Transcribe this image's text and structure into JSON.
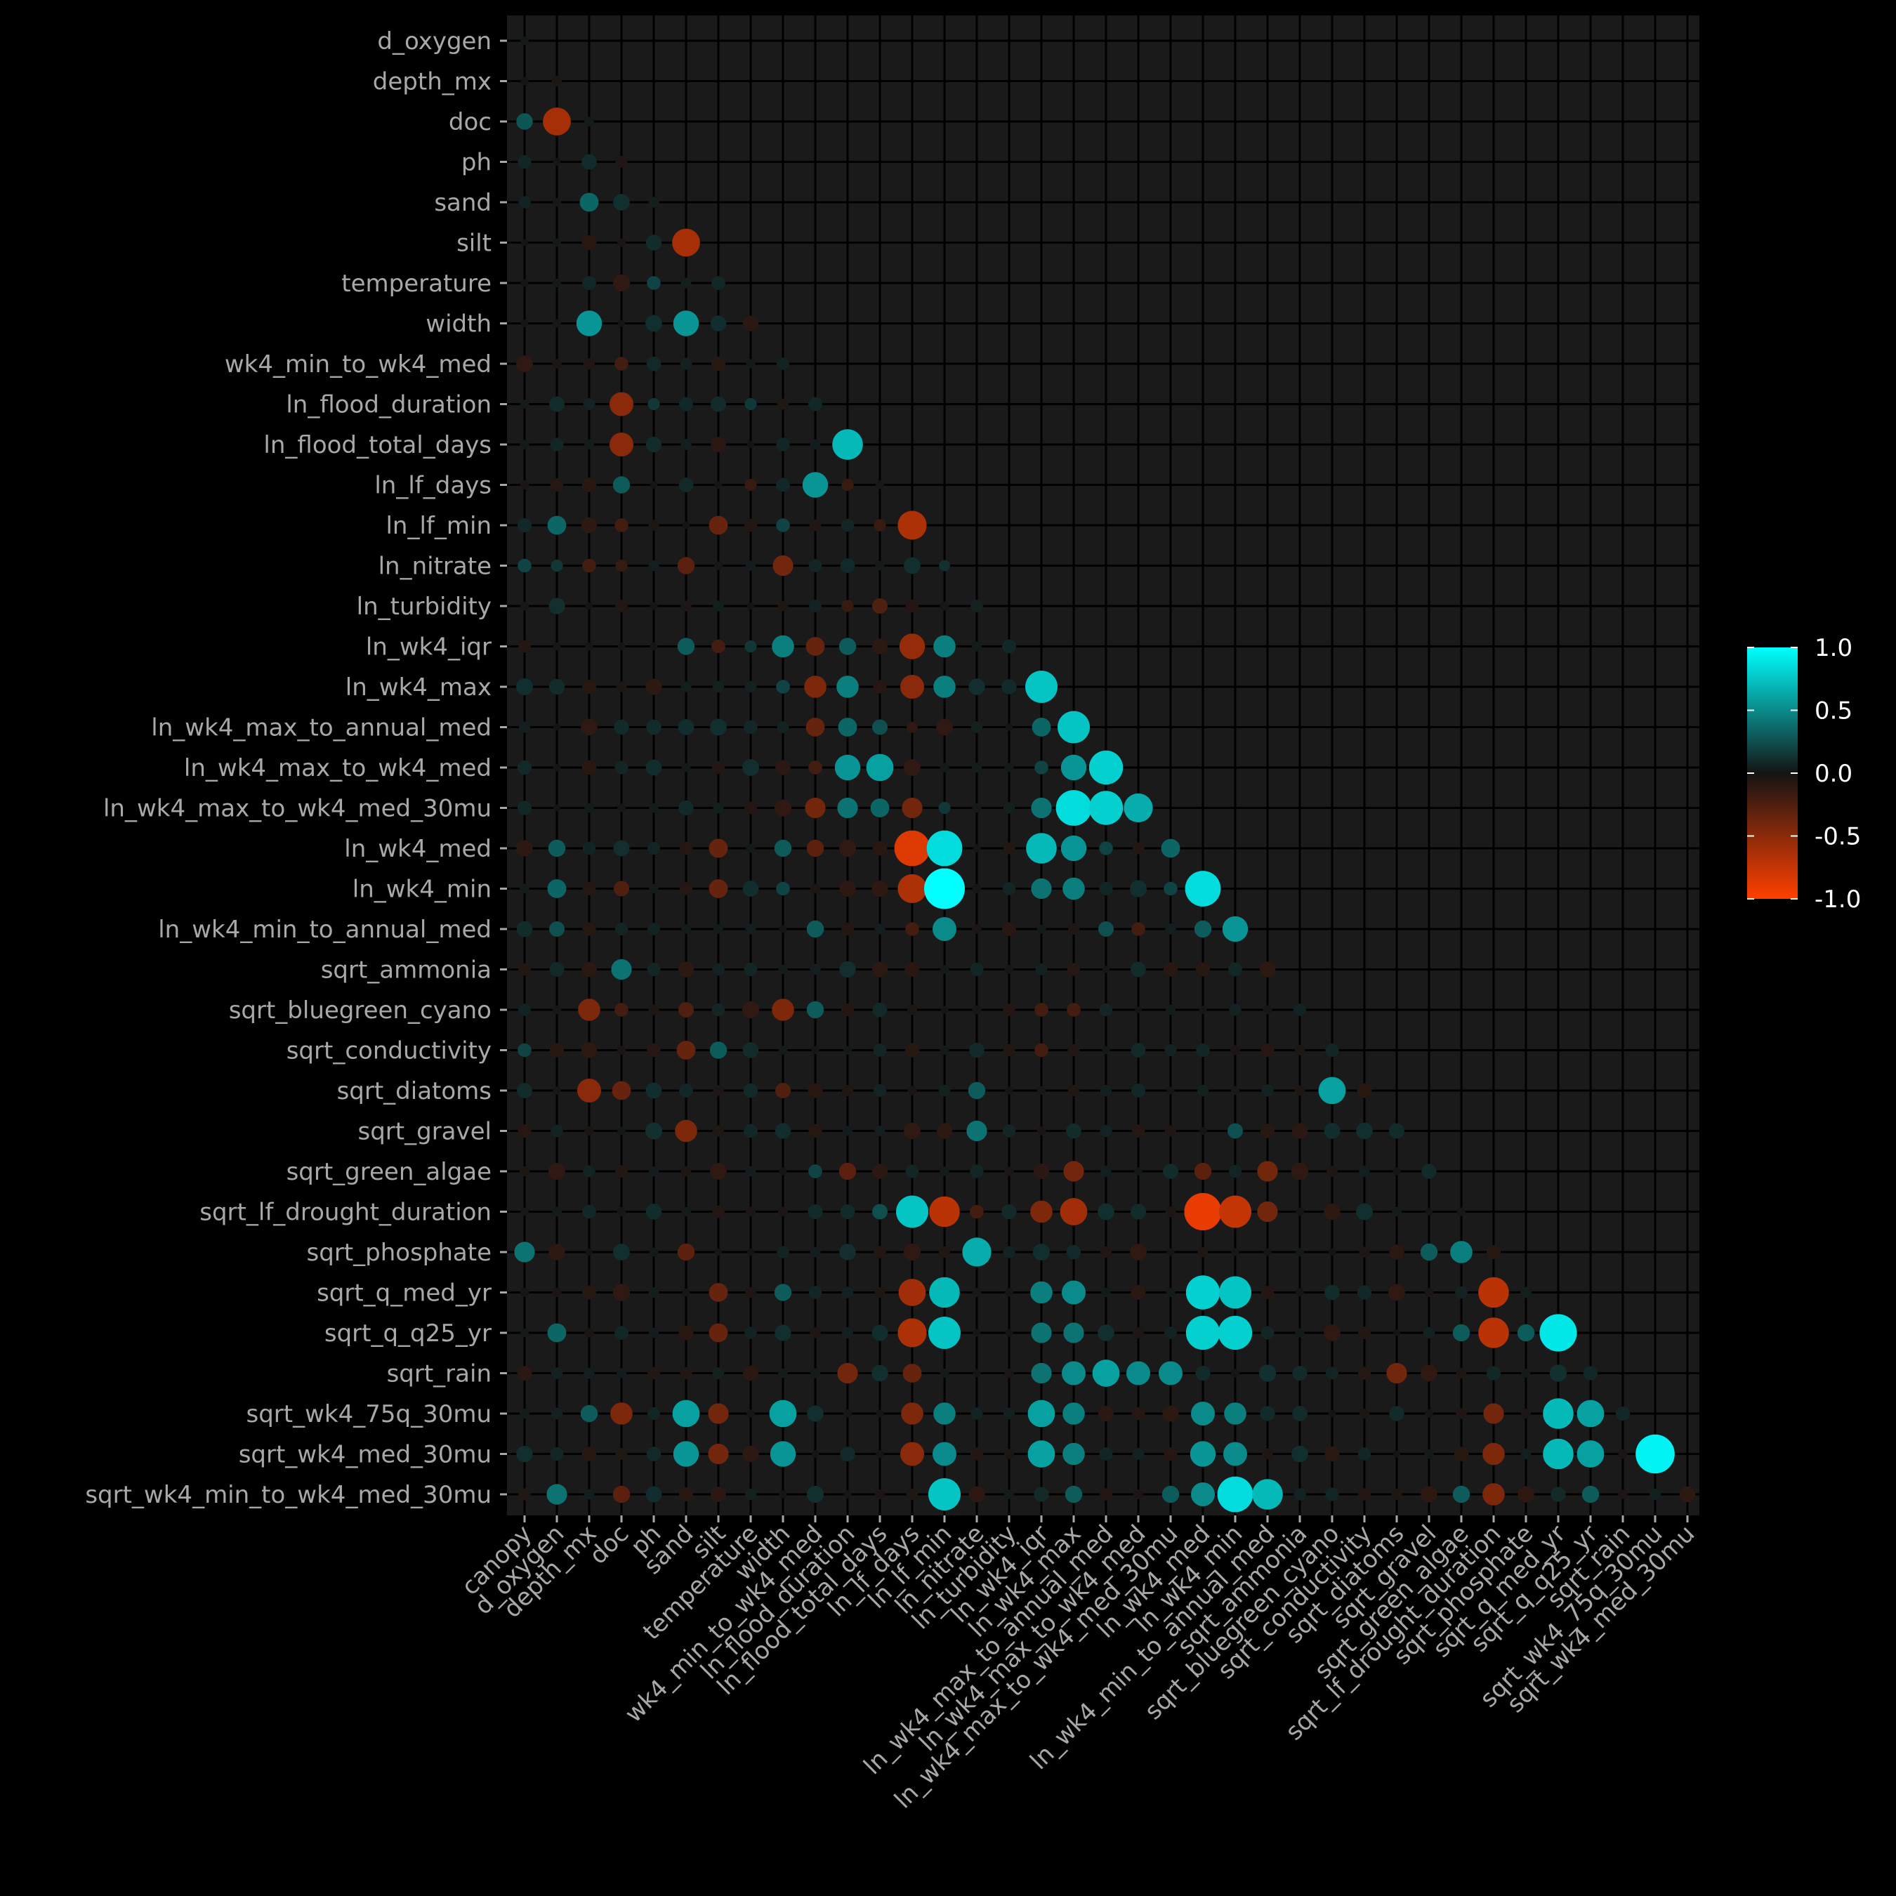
{
  "chart_data": {
    "type": "heatmap",
    "subtype": "correlation-bubble-lower-triangle",
    "title": "",
    "xlabel": "",
    "ylabel": "",
    "variables": [
      "canopy",
      "d_oxygen",
      "depth_mx",
      "doc",
      "ph",
      "sand",
      "silt",
      "temperature",
      "width",
      "wk4_min_to_wk4_med",
      "ln_flood_duration",
      "ln_flood_total_days",
      "ln_lf_days",
      "ln_lf_min",
      "ln_nitrate",
      "ln_turbidity",
      "ln_wk4_iqr",
      "ln_wk4_max",
      "ln_wk4_max_to_annual_med",
      "ln_wk4_max_to_wk4_med",
      "ln_wk4_max_to_wk4_med_30mu",
      "ln_wk4_med",
      "ln_wk4_min",
      "ln_wk4_min_to_annual_med",
      "sqrt_ammonia",
      "sqrt_bluegreen_cyano",
      "sqrt_conductivity",
      "sqrt_diatoms",
      "sqrt_gravel",
      "sqrt_green_algae",
      "sqrt_lf_drought_duration",
      "sqrt_phosphate",
      "sqrt_q_med_yr",
      "sqrt_q_q25_yr",
      "sqrt_rain",
      "sqrt_wk4_75q_30mu",
      "sqrt_wk4_med_30mu",
      "sqrt_wk4_min_to_wk4_med_30mu"
    ],
    "x_labels": [
      "canopy",
      "d_oxygen",
      "depth_mx",
      "doc",
      "ph",
      "sand",
      "silt",
      "temperature",
      "width",
      "wk4_min_to_wk4_med",
      "ln_flood_duration",
      "ln_flood_total_days",
      "ln_lf_days",
      "ln_lf_min",
      "ln_nitrate",
      "ln_turbidity",
      "ln_wk4_iqr",
      "ln_wk4_max",
      "ln_wk4_max_to_annual_med",
      "ln_wk4_max_to_wk4_med",
      "ln_wk4_max_to_wk4_med_30mu",
      "ln_wk4_med",
      "ln_wk4_min",
      "ln_wk4_min_to_annual_med",
      "sqrt_ammonia",
      "sqrt_bluegreen_cyano",
      "sqrt_conductivity",
      "sqrt_diatoms",
      "sqrt_gravel",
      "sqrt_green_algae",
      "sqrt_lf_drought_duration",
      "sqrt_phosphate",
      "sqrt_q_med_yr",
      "sqrt_q_q25_yr",
      "sqrt_rain",
      "sqrt_wk4_75q_30mu",
      "sqrt_wk4_med_30mu"
    ],
    "y_labels": [
      "d_oxygen",
      "depth_mx",
      "doc",
      "ph",
      "sand",
      "silt",
      "temperature",
      "width",
      "wk4_min_to_wk4_med",
      "ln_flood_duration",
      "ln_flood_total_days",
      "ln_lf_days",
      "ln_lf_min",
      "ln_nitrate",
      "ln_turbidity",
      "ln_wk4_iqr",
      "ln_wk4_max",
      "ln_wk4_max_to_annual_med",
      "ln_wk4_max_to_wk4_med",
      "ln_wk4_max_to_wk4_med_30mu",
      "ln_wk4_med",
      "ln_wk4_min",
      "ln_wk4_min_to_annual_med",
      "sqrt_ammonia",
      "sqrt_bluegreen_cyano",
      "sqrt_conductivity",
      "sqrt_diatoms",
      "sqrt_gravel",
      "sqrt_green_algae",
      "sqrt_lf_drought_duration",
      "sqrt_phosphate",
      "sqrt_q_med_yr",
      "sqrt_q_q25_yr",
      "sqrt_rain",
      "sqrt_wk4_75q_30mu",
      "sqrt_wk4_med_30mu",
      "sqrt_wk4_min_to_wk4_med_30mu"
    ],
    "cells": [
      [
        "doc",
        "canopy",
        0.28
      ],
      [
        "doc",
        "d_oxygen",
        -0.62
      ],
      [
        "sand",
        "depth_mx",
        0.35
      ],
      [
        "silt",
        "sand",
        -0.62
      ],
      [
        "temperature",
        "ph",
        0.2
      ],
      [
        "width",
        "depth_mx",
        0.55
      ],
      [
        "width",
        "sand",
        0.55
      ],
      [
        "wk4_min_to_wk4_med",
        "doc",
        -0.2
      ],
      [
        "ln_flood_duration",
        "doc",
        -0.5
      ],
      [
        "ln_flood_duration",
        "ph",
        0.15
      ],
      [
        "ln_flood_duration",
        "temperature",
        0.15
      ],
      [
        "ln_flood_total_days",
        "doc",
        -0.5
      ],
      [
        "ln_flood_total_days",
        "ln_flood_duration",
        0.7
      ],
      [
        "ln_lf_days",
        "doc",
        0.3
      ],
      [
        "ln_lf_days",
        "temperature",
        -0.15
      ],
      [
        "ln_lf_days",
        "wk4_min_to_wk4_med",
        0.55
      ],
      [
        "ln_lf_days",
        "ln_flood_duration",
        -0.15
      ],
      [
        "ln_lf_min",
        "d_oxygen",
        0.35
      ],
      [
        "ln_lf_min",
        "doc",
        -0.2
      ],
      [
        "ln_lf_min",
        "silt",
        -0.35
      ],
      [
        "ln_lf_min",
        "width",
        0.2
      ],
      [
        "ln_lf_min",
        "ln_flood_total_days",
        -0.15
      ],
      [
        "ln_lf_min",
        "ln_lf_days",
        -0.65
      ],
      [
        "ln_nitrate",
        "canopy",
        0.2
      ],
      [
        "ln_nitrate",
        "d_oxygen",
        0.15
      ],
      [
        "ln_nitrate",
        "depth_mx",
        -0.2
      ],
      [
        "ln_nitrate",
        "doc",
        -0.15
      ],
      [
        "ln_nitrate",
        "sand",
        -0.3
      ],
      [
        "ln_nitrate",
        "width",
        -0.4
      ],
      [
        "ln_nitrate",
        "ln_lf_min",
        0.12
      ],
      [
        "ln_turbidity",
        "ln_flood_duration",
        -0.15
      ],
      [
        "ln_turbidity",
        "ln_flood_total_days",
        -0.25
      ],
      [
        "ln_wk4_iqr",
        "sand",
        0.3
      ],
      [
        "ln_wk4_iqr",
        "silt",
        -0.2
      ],
      [
        "ln_wk4_iqr",
        "temperature",
        0.15
      ],
      [
        "ln_wk4_iqr",
        "width",
        0.45
      ],
      [
        "ln_wk4_iqr",
        "wk4_min_to_wk4_med",
        -0.35
      ],
      [
        "ln_wk4_iqr",
        "ln_flood_duration",
        0.3
      ],
      [
        "ln_wk4_iqr",
        "ln_lf_days",
        -0.55
      ],
      [
        "ln_wk4_iqr",
        "ln_lf_min",
        0.45
      ],
      [
        "ln_wk4_max",
        "width",
        0.2
      ],
      [
        "ln_wk4_max",
        "wk4_min_to_wk4_med",
        -0.45
      ],
      [
        "ln_wk4_max",
        "ln_flood_duration",
        0.45
      ],
      [
        "ln_wk4_max",
        "ln_lf_days",
        -0.5
      ],
      [
        "ln_wk4_max",
        "ln_lf_min",
        0.45
      ],
      [
        "ln_wk4_max",
        "ln_wk4_iqr",
        0.75
      ],
      [
        "ln_wk4_max_to_annual_med",
        "wk4_min_to_wk4_med",
        -0.35
      ],
      [
        "ln_wk4_max_to_annual_med",
        "ln_flood_duration",
        0.35
      ],
      [
        "ln_wk4_max_to_annual_med",
        "ln_flood_total_days",
        0.25
      ],
      [
        "ln_wk4_max_to_annual_med",
        "ln_lf_days",
        -0.12
      ],
      [
        "ln_wk4_max_to_annual_med",
        "ln_wk4_iqr",
        0.35
      ],
      [
        "ln_wk4_max_to_annual_med",
        "ln_wk4_max",
        0.75
      ],
      [
        "ln_wk4_max_to_wk4_med",
        "wk4_min_to_wk4_med",
        -0.2
      ],
      [
        "ln_wk4_max_to_wk4_med",
        "ln_flood_duration",
        0.55
      ],
      [
        "ln_wk4_max_to_wk4_med",
        "ln_flood_total_days",
        0.6
      ],
      [
        "ln_wk4_max_to_wk4_med",
        "ln_wk4_iqr",
        0.2
      ],
      [
        "ln_wk4_max_to_wk4_med",
        "ln_wk4_max",
        0.55
      ],
      [
        "ln_wk4_max_to_wk4_med",
        "ln_wk4_max_to_annual_med",
        0.8
      ],
      [
        "ln_wk4_max_to_wk4_med_30mu",
        "wk4_min_to_wk4_med",
        -0.4
      ],
      [
        "ln_wk4_max_to_wk4_med_30mu",
        "ln_flood_duration",
        0.4
      ],
      [
        "ln_wk4_max_to_wk4_med_30mu",
        "ln_flood_total_days",
        0.35
      ],
      [
        "ln_wk4_max_to_wk4_med_30mu",
        "ln_lf_days",
        -0.4
      ],
      [
        "ln_wk4_max_to_wk4_med_30mu",
        "ln_lf_min",
        0.15
      ],
      [
        "ln_wk4_max_to_wk4_med_30mu",
        "ln_wk4_iqr",
        0.4
      ],
      [
        "ln_wk4_max_to_wk4_med_30mu",
        "ln_wk4_max",
        0.85
      ],
      [
        "ln_wk4_max_to_wk4_med_30mu",
        "ln_wk4_max_to_annual_med",
        0.8
      ],
      [
        "ln_wk4_max_to_wk4_med_30mu",
        "ln_wk4_max_to_wk4_med",
        0.65
      ],
      [
        "ln_wk4_med",
        "d_oxygen",
        0.3
      ],
      [
        "ln_wk4_med",
        "silt",
        -0.35
      ],
      [
        "ln_wk4_med",
        "width",
        0.3
      ],
      [
        "ln_wk4_med",
        "wk4_min_to_wk4_med",
        -0.3
      ],
      [
        "ln_wk4_med",
        "ln_lf_days",
        -0.85
      ],
      [
        "ln_wk4_med",
        "ln_lf_min",
        0.85
      ],
      [
        "ln_wk4_med",
        "ln_wk4_iqr",
        0.7
      ],
      [
        "ln_wk4_med",
        "ln_wk4_max",
        0.55
      ],
      [
        "ln_wk4_med",
        "ln_wk4_max_to_annual_med",
        0.2
      ],
      [
        "ln_wk4_med",
        "ln_wk4_max_to_wk4_med_30mu",
        0.35
      ],
      [
        "ln_wk4_min",
        "d_oxygen",
        0.35
      ],
      [
        "ln_wk4_min",
        "doc",
        -0.25
      ],
      [
        "ln_wk4_min",
        "silt",
        -0.35
      ],
      [
        "ln_wk4_min",
        "width",
        0.2
      ],
      [
        "ln_wk4_min",
        "ln_lf_days",
        -0.65
      ],
      [
        "ln_wk4_min",
        "ln_lf_min",
        1.0
      ],
      [
        "ln_wk4_min",
        "ln_wk4_iqr",
        0.4
      ],
      [
        "ln_wk4_min",
        "ln_wk4_max",
        0.45
      ],
      [
        "ln_wk4_min",
        "ln_wk4_max_to_wk4_med_30mu",
        0.2
      ],
      [
        "ln_wk4_min",
        "ln_wk4_med",
        0.85
      ],
      [
        "ln_wk4_min_to_annual_med",
        "d_oxygen",
        0.25
      ],
      [
        "ln_wk4_min_to_annual_med",
        "wk4_min_to_wk4_med",
        0.3
      ],
      [
        "ln_wk4_min_to_annual_med",
        "ln_lf_days",
        -0.2
      ],
      [
        "ln_wk4_min_to_annual_med",
        "ln_lf_min",
        0.5
      ],
      [
        "ln_wk4_min_to_annual_med",
        "ln_wk4_max_to_annual_med",
        0.25
      ],
      [
        "ln_wk4_min_to_annual_med",
        "ln_wk4_max_to_wk4_med",
        -0.2
      ],
      [
        "ln_wk4_min_to_annual_med",
        "ln_wk4_med",
        0.3
      ],
      [
        "ln_wk4_min_to_annual_med",
        "ln_wk4_min",
        0.55
      ],
      [
        "sqrt_ammonia",
        "doc",
        0.4
      ],
      [
        "sqrt_bluegreen_cyano",
        "depth_mx",
        -0.45
      ],
      [
        "sqrt_bluegreen_cyano",
        "doc",
        -0.2
      ],
      [
        "sqrt_bluegreen_cyano",
        "sand",
        -0.25
      ],
      [
        "sqrt_bluegreen_cyano",
        "width",
        -0.45
      ],
      [
        "sqrt_bluegreen_cyano",
        "wk4_min_to_wk4_med",
        0.3
      ],
      [
        "sqrt_bluegreen_cyano",
        "ln_wk4_iqr",
        -0.2
      ],
      [
        "sqrt_bluegreen_cyano",
        "ln_wk4_max",
        -0.2
      ],
      [
        "sqrt_conductivity",
        "canopy",
        0.2
      ],
      [
        "sqrt_conductivity",
        "sand",
        -0.35
      ],
      [
        "sqrt_conductivity",
        "silt",
        0.3
      ],
      [
        "sqrt_conductivity",
        "ln_wk4_iqr",
        -0.2
      ],
      [
        "sqrt_diatoms",
        "depth_mx",
        -0.5
      ],
      [
        "sqrt_diatoms",
        "doc",
        -0.35
      ],
      [
        "sqrt_diatoms",
        "width",
        -0.25
      ],
      [
        "sqrt_diatoms",
        "ln_nitrate",
        0.3
      ],
      [
        "sqrt_diatoms",
        "sqrt_bluegreen_cyano",
        0.6
      ],
      [
        "sqrt_gravel",
        "sand",
        -0.45
      ],
      [
        "sqrt_gravel",
        "ln_nitrate",
        0.4
      ],
      [
        "sqrt_gravel",
        "ln_wk4_min",
        0.25
      ],
      [
        "sqrt_green_algae",
        "wk4_min_to_wk4_med",
        0.2
      ],
      [
        "sqrt_green_algae",
        "ln_flood_duration",
        -0.3
      ],
      [
        "sqrt_green_algae",
        "ln_wk4_max",
        -0.4
      ],
      [
        "sqrt_green_algae",
        "ln_wk4_min_to_annual_med",
        -0.4
      ],
      [
        "sqrt_green_algae",
        "ln_wk4_med",
        -0.3
      ],
      [
        "sqrt_lf_drought_duration",
        "ln_flood_total_days",
        0.25
      ],
      [
        "sqrt_lf_drought_duration",
        "ln_lf_days",
        0.75
      ],
      [
        "sqrt_lf_drought_duration",
        "ln_lf_min",
        -0.7
      ],
      [
        "sqrt_lf_drought_duration",
        "ln_nitrate",
        -0.2
      ],
      [
        "sqrt_lf_drought_duration",
        "ln_wk4_iqr",
        -0.45
      ],
      [
        "sqrt_lf_drought_duration",
        "ln_wk4_max",
        -0.6
      ],
      [
        "sqrt_lf_drought_duration",
        "ln_wk4_min_to_annual_med",
        -0.4
      ],
      [
        "sqrt_lf_drought_duration",
        "ln_wk4_med",
        -0.9
      ],
      [
        "sqrt_lf_drought_duration",
        "ln_wk4_min",
        -0.75
      ],
      [
        "sqrt_phosphate",
        "canopy",
        0.4
      ],
      [
        "sqrt_phosphate",
        "sand",
        -0.3
      ],
      [
        "sqrt_phosphate",
        "ln_nitrate",
        0.65
      ],
      [
        "sqrt_phosphate",
        "sqrt_gravel",
        0.3
      ],
      [
        "sqrt_phosphate",
        "sqrt_green_algae",
        0.45
      ],
      [
        "sqrt_q_med_yr",
        "width",
        0.3
      ],
      [
        "sqrt_q_med_yr",
        "silt",
        -0.35
      ],
      [
        "sqrt_q_med_yr",
        "ln_lf_days",
        -0.6
      ],
      [
        "sqrt_q_med_yr",
        "ln_lf_min",
        0.7
      ],
      [
        "sqrt_q_med_yr",
        "ln_wk4_iqr",
        0.45
      ],
      [
        "sqrt_q_med_yr",
        "ln_wk4_max",
        0.5
      ],
      [
        "sqrt_q_med_yr",
        "ln_wk4_med",
        0.8
      ],
      [
        "sqrt_q_med_yr",
        "ln_wk4_min",
        0.75
      ],
      [
        "sqrt_q_med_yr",
        "sqrt_lf_drought_duration",
        -0.7
      ],
      [
        "sqrt_q_q25_yr",
        "d_oxygen",
        0.35
      ],
      [
        "sqrt_q_q25_yr",
        "silt",
        -0.35
      ],
      [
        "sqrt_q_q25_yr",
        "ln_lf_days",
        -0.65
      ],
      [
        "sqrt_q_q25_yr",
        "ln_lf_min",
        0.75
      ],
      [
        "sqrt_q_q25_yr",
        "ln_wk4_iqr",
        0.4
      ],
      [
        "sqrt_q_q25_yr",
        "ln_wk4_max",
        0.4
      ],
      [
        "sqrt_q_q25_yr",
        "ln_wk4_med",
        0.8
      ],
      [
        "sqrt_q_q25_yr",
        "ln_wk4_min",
        0.8
      ],
      [
        "sqrt_q_q25_yr",
        "sqrt_green_algae",
        0.3
      ],
      [
        "sqrt_q_q25_yr",
        "sqrt_lf_drought_duration",
        -0.7
      ],
      [
        "sqrt_q_q25_yr",
        "sqrt_phosphate",
        0.3
      ],
      [
        "sqrt_q_q25_yr",
        "sqrt_q_med_yr",
        0.9
      ],
      [
        "sqrt_rain",
        "ln_flood_duration",
        -0.4
      ],
      [
        "sqrt_rain",
        "ln_lf_days",
        -0.35
      ],
      [
        "sqrt_rain",
        "ln_wk4_iqr",
        0.4
      ],
      [
        "sqrt_rain",
        "ln_wk4_max",
        0.5
      ],
      [
        "sqrt_rain",
        "ln_wk4_max_to_annual_med",
        0.6
      ],
      [
        "sqrt_rain",
        "ln_wk4_max_to_wk4_med",
        0.5
      ],
      [
        "sqrt_rain",
        "ln_wk4_max_to_wk4_med_30mu",
        0.5
      ],
      [
        "sqrt_rain",
        "sqrt_diatoms",
        -0.4
      ],
      [
        "sqrt_wk4_75q_30mu",
        "depth_mx",
        0.3
      ],
      [
        "sqrt_wk4_75q_30mu",
        "doc",
        -0.45
      ],
      [
        "sqrt_wk4_75q_30mu",
        "sand",
        0.6
      ],
      [
        "sqrt_wk4_75q_30mu",
        "silt",
        -0.4
      ],
      [
        "sqrt_wk4_75q_30mu",
        "width",
        0.6
      ],
      [
        "sqrt_wk4_75q_30mu",
        "ln_lf_days",
        -0.45
      ],
      [
        "sqrt_wk4_75q_30mu",
        "ln_lf_min",
        0.45
      ],
      [
        "sqrt_wk4_75q_30mu",
        "ln_wk4_iqr",
        0.6
      ],
      [
        "sqrt_wk4_75q_30mu",
        "ln_wk4_max",
        0.45
      ],
      [
        "sqrt_wk4_75q_30mu",
        "ln_wk4_med",
        0.5
      ],
      [
        "sqrt_wk4_75q_30mu",
        "ln_wk4_min",
        0.45
      ],
      [
        "sqrt_wk4_75q_30mu",
        "sqrt_lf_drought_duration",
        -0.4
      ],
      [
        "sqrt_wk4_75q_30mu",
        "sqrt_q_med_yr",
        0.7
      ],
      [
        "sqrt_wk4_75q_30mu",
        "sqrt_q_q25_yr",
        0.6
      ],
      [
        "sqrt_wk4_med_30mu",
        "sand",
        0.55
      ],
      [
        "sqrt_wk4_med_30mu",
        "silt",
        -0.4
      ],
      [
        "sqrt_wk4_med_30mu",
        "width",
        0.55
      ],
      [
        "sqrt_wk4_med_30mu",
        "ln_lf_days",
        -0.5
      ],
      [
        "sqrt_wk4_med_30mu",
        "ln_lf_min",
        0.5
      ],
      [
        "sqrt_wk4_med_30mu",
        "ln_wk4_iqr",
        0.6
      ],
      [
        "sqrt_wk4_med_30mu",
        "ln_wk4_max",
        0.45
      ],
      [
        "sqrt_wk4_med_30mu",
        "ln_wk4_med",
        0.55
      ],
      [
        "sqrt_wk4_med_30mu",
        "ln_wk4_min",
        0.5
      ],
      [
        "sqrt_wk4_med_30mu",
        "sqrt_lf_drought_duration",
        -0.45
      ],
      [
        "sqrt_wk4_med_30mu",
        "sqrt_q_med_yr",
        0.7
      ],
      [
        "sqrt_wk4_med_30mu",
        "sqrt_q_q25_yr",
        0.6
      ],
      [
        "sqrt_wk4_med_30mu",
        "sqrt_wk4_75q_30mu",
        0.95
      ],
      [
        "sqrt_wk4_min_to_wk4_med_30mu",
        "d_oxygen",
        0.4
      ],
      [
        "sqrt_wk4_min_to_wk4_med_30mu",
        "doc",
        -0.3
      ],
      [
        "sqrt_wk4_min_to_wk4_med_30mu",
        "ln_lf_min",
        0.75
      ],
      [
        "sqrt_wk4_min_to_wk4_med_30mu",
        "ln_wk4_max",
        0.3
      ],
      [
        "sqrt_wk4_min_to_wk4_med_30mu",
        "ln_wk4_max_to_wk4_med_30mu",
        0.3
      ],
      [
        "sqrt_wk4_min_to_wk4_med_30mu",
        "ln_wk4_med",
        0.5
      ],
      [
        "sqrt_wk4_min_to_wk4_med_30mu",
        "ln_wk4_min",
        0.85
      ],
      [
        "sqrt_wk4_min_to_wk4_med_30mu",
        "ln_wk4_min_to_annual_med",
        0.7
      ],
      [
        "sqrt_wk4_min_to_wk4_med_30mu",
        "sqrt_green_algae",
        0.3
      ],
      [
        "sqrt_wk4_min_to_wk4_med_30mu",
        "sqrt_lf_drought_duration",
        -0.45
      ],
      [
        "sqrt_wk4_min_to_wk4_med_30mu",
        "sqrt_q_q25_yr",
        0.3
      ]
    ],
    "value_range": [
      -1.0,
      1.0
    ],
    "grid": true,
    "legend": {
      "placement": "right",
      "ticks": [
        "1.0",
        "0.5",
        "0.0",
        "-0.5",
        "-1.0"
      ],
      "tick_values": [
        1.0,
        0.5,
        0.0,
        -0.5,
        -1.0
      ]
    },
    "colors": {
      "positive": "#00ffff",
      "zero": "#141414",
      "negative": "#ff4000",
      "panel_background": "#1a1a1a",
      "page_background": "#000000"
    }
  }
}
